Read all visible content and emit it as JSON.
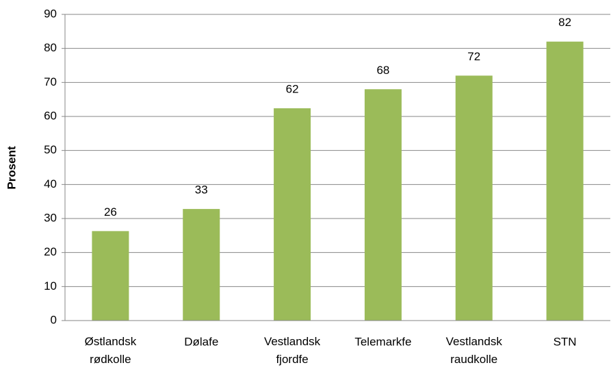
{
  "chart_data": {
    "type": "bar",
    "ylabel": "Prosent",
    "categories": [
      "Østlandsk rødkolle",
      "Dølafe",
      "Vestlandsk fjordfe",
      "Telemarkfe",
      "Vestlandsk raudkolle",
      "STN"
    ],
    "values": [
      26.3,
      32.8,
      62.4,
      68,
      72,
      82
    ],
    "value_labels": [
      "26",
      "33",
      "62",
      "68",
      "72",
      "82"
    ],
    "color": "#9bbb59",
    "ylim": [
      0,
      90
    ],
    "yticks": [
      0,
      10,
      20,
      30,
      40,
      50,
      60,
      70,
      80,
      90
    ],
    "grid": true
  }
}
